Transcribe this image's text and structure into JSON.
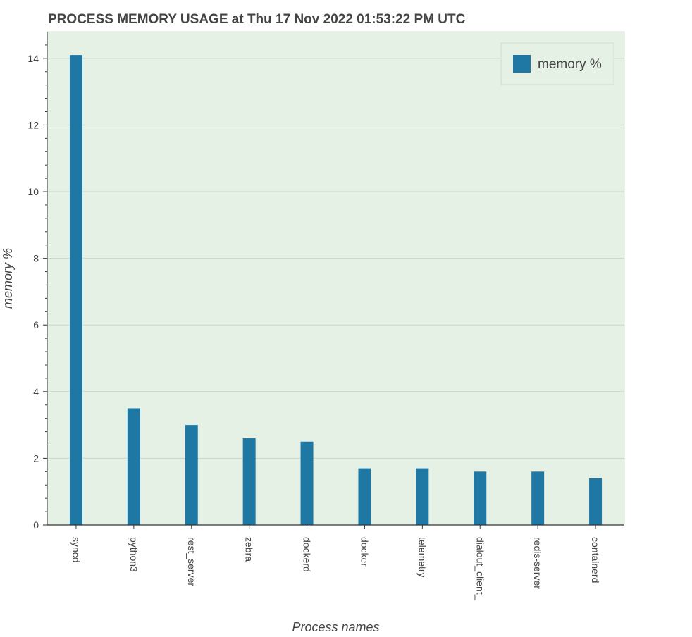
{
  "chart_data": {
    "type": "bar",
    "title": "PROCESS MEMORY USAGE at Thu 17 Nov 2022 01:53:22 PM UTC",
    "xlabel": "Process names",
    "ylabel": "memory %",
    "categories": [
      "syncd",
      "python3",
      "rest_server",
      "zebra",
      "dockerd",
      "docker",
      "telemetry",
      "dialout_client_",
      "redis-server",
      "containerd"
    ],
    "series": [
      {
        "name": "memory %",
        "values": [
          14.1,
          3.5,
          3.0,
          2.6,
          2.5,
          1.7,
          1.7,
          1.6,
          1.6,
          1.4
        ]
      }
    ],
    "ylim": [
      0,
      14.8
    ],
    "yticks": [
      0,
      2,
      4,
      6,
      8,
      10,
      12,
      14
    ],
    "yticklabels": [
      "0",
      "2",
      "4",
      "6",
      "8",
      "10",
      "12",
      "14"
    ],
    "grid": true,
    "legend": "top-right",
    "colors": {
      "bar": "#1f77a4",
      "background": "#e6f1e6",
      "grid": "#c9d6c9"
    }
  }
}
